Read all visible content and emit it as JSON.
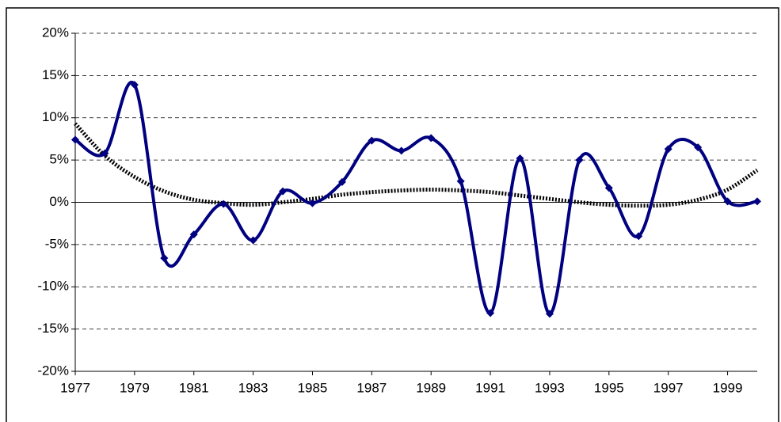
{
  "chart_data": {
    "type": "line",
    "x": [
      1977,
      1978,
      1979,
      1980,
      1981,
      1982,
      1983,
      1984,
      1985,
      1986,
      1987,
      1988,
      1989,
      1990,
      1991,
      1992,
      1993,
      1994,
      1995,
      1996,
      1997,
      1998,
      1999,
      2000
    ],
    "series": [
      {
        "color": "#000080",
        "style": "solid",
        "markers": true,
        "values": [
          7.4,
          5.8,
          13.9,
          -6.6,
          -3.8,
          -0.2,
          -4.5,
          1.3,
          -0.1,
          2.4,
          7.3,
          6.1,
          7.6,
          2.5,
          -13.1,
          5.2,
          -13.2,
          5.0,
          1.7,
          -4.0,
          6.3,
          6.5,
          0.1,
          0.1
        ]
      },
      {
        "color": "#000000",
        "style": "dotted",
        "markers": false,
        "values": [
          9.3,
          5.5,
          3.0,
          1.3,
          0.3,
          -0.1,
          -0.3,
          0.0,
          0.4,
          0.9,
          1.2,
          1.4,
          1.5,
          1.4,
          1.2,
          0.8,
          0.4,
          0.0,
          -0.3,
          -0.4,
          -0.3,
          0.3,
          1.5,
          3.8
        ]
      }
    ],
    "xlim": [
      1977,
      2000
    ],
    "xticks": [
      1977,
      1979,
      1981,
      1983,
      1985,
      1987,
      1989,
      1991,
      1993,
      1995,
      1997,
      1999
    ],
    "ylim": [
      -20,
      20
    ],
    "yticks": [
      {
        "value": -20,
        "label": "-20%"
      },
      {
        "value": -15,
        "label": "-15%"
      },
      {
        "value": -10,
        "label": "-10%"
      },
      {
        "value": -5,
        "label": "-5%"
      },
      {
        "value": 0,
        "label": "0%"
      },
      {
        "value": 5,
        "label": "5%"
      },
      {
        "value": 10,
        "label": "10%"
      },
      {
        "value": 15,
        "label": "15%"
      },
      {
        "value": 20,
        "label": "20%"
      }
    ],
    "grid": true
  }
}
